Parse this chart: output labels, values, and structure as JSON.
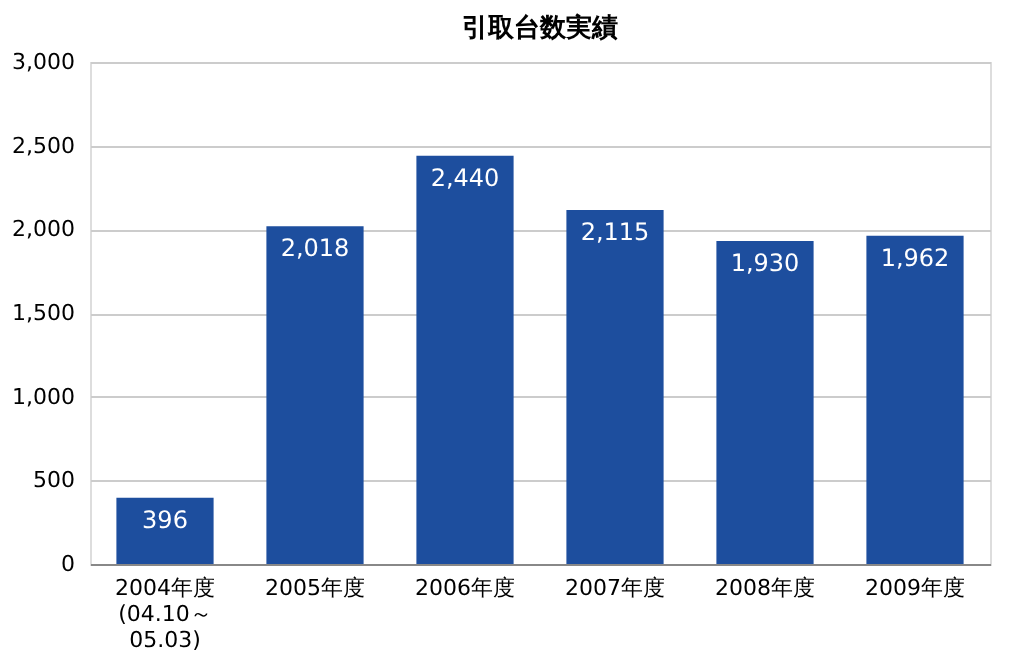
{
  "chart_data": {
    "type": "bar",
    "title": "引取台数実績",
    "categories": [
      "2004年度\n(04.10～\n05.03)",
      "2005年度",
      "2006年度",
      "2007年度",
      "2008年度",
      "2009年度"
    ],
    "values": [
      396,
      2018,
      2440,
      2115,
      1930,
      1962
    ],
    "color": "#1d4e9e",
    "ylim": [
      0,
      3000
    ],
    "yticks": [
      0,
      500,
      {
        "value": 1000,
        "label": "1,000"
      },
      {
        "value": 1500,
        "label": "1,500"
      },
      {
        "value": 2000,
        "label": "2,000"
      },
      {
        "value": 2500,
        "label": "2,500"
      },
      {
        "value": 3000,
        "label": "3,000"
      }
    ],
    "value_labels": [
      "396",
      "2,018",
      "2,440",
      "2,115",
      "1,930",
      "1,962"
    ],
    "grid": "y"
  }
}
